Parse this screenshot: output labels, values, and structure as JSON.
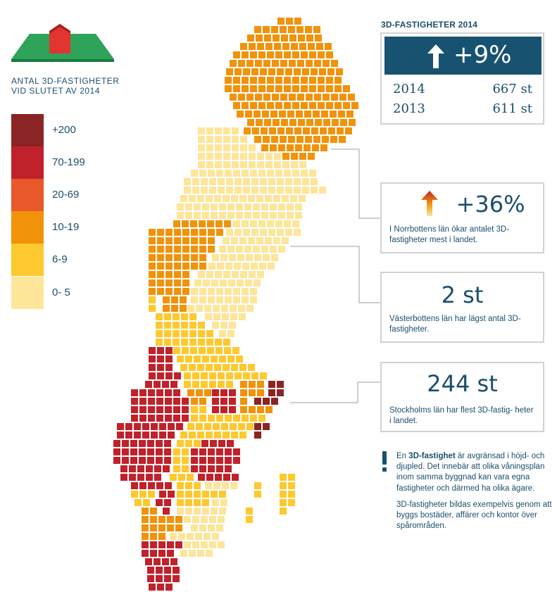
{
  "legend": {
    "title_line1": "ANTAL 3D-FASTIGHETER",
    "title_line2": "VID SLUTET AV 2014",
    "items": [
      {
        "label": "+200",
        "color": "#8b2424"
      },
      {
        "label": "70-199",
        "color": "#c1212a"
      },
      {
        "label": "20-69",
        "color": "#e8582a"
      },
      {
        "label": "10-19",
        "color": "#f0930a"
      },
      {
        "label": "6-9",
        "color": "#fdc92f"
      },
      {
        "label": "0- 5",
        "color": "#fde59a"
      }
    ]
  },
  "summary": {
    "heading": "3D-FASTIGHETER 2014",
    "change": "+9%",
    "rows": [
      {
        "year": "2014",
        "value": "667 st"
      },
      {
        "year": "2013",
        "value": "611 st"
      }
    ]
  },
  "boxes": [
    {
      "value": "+36%",
      "text": "I Norrbottens län ökar antalet 3D-fastigheter mest i landet."
    },
    {
      "value": "2 st",
      "text": "Västerbottens län har lägst antal 3D-fastigheter."
    },
    {
      "value": "244 st",
      "text": "Stockholms län har flest 3D-fastig- heter i landet."
    }
  ],
  "note": {
    "lead": "En ",
    "term": "3D-fastighet",
    "rest": " är avgränsad i höjd- och djupled. Det innebär att olika våningsplan inom samma byggnad kan vara egna fastigheter och därmed ha olika ägare.",
    "para2": "3D-fastigheter bildas exempelvis genom att byggs bostäder, affärer och kontor över spårområden."
  },
  "colors": {
    "navy": "#185271",
    "text": "#1a4f6b",
    "border": "#d2d2d2",
    "roof_green": "#2ea359",
    "house_red": "#e33530"
  }
}
